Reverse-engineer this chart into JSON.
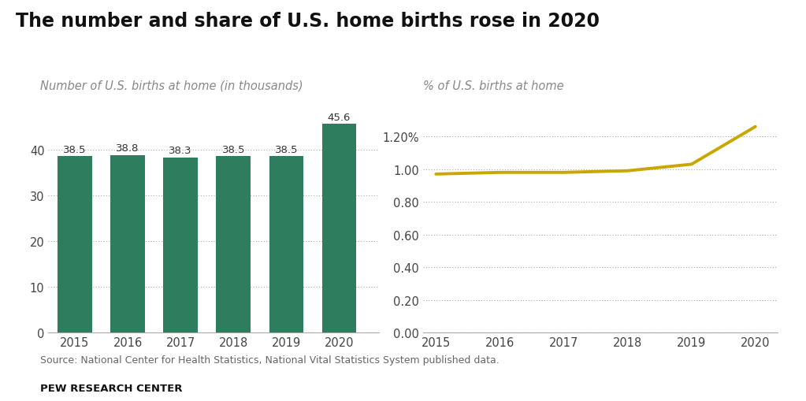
{
  "title": "The number and share of U.S. home births rose in 2020",
  "left_subtitle": "Number of U.S. births at home (in thousands)",
  "right_subtitle": "% of U.S. births at home",
  "source": "Source: National Center for Health Statistics, National Vital Statistics System published data.",
  "brand": "PEW RESEARCH CENTER",
  "bar_years": [
    2015,
    2016,
    2017,
    2018,
    2019,
    2020
  ],
  "bar_values": [
    38.5,
    38.8,
    38.3,
    38.5,
    38.5,
    45.6
  ],
  "bar_color": "#2e7d5e",
  "bar_labels": [
    "38.5",
    "38.8",
    "38.3",
    "38.5",
    "38.5",
    "45.6"
  ],
  "line_years": [
    2015,
    2016,
    2017,
    2018,
    2019,
    2020
  ],
  "line_values": [
    0.97,
    0.98,
    0.98,
    0.99,
    1.03,
    1.26
  ],
  "line_color": "#c8a800",
  "bar_ylim": [
    0,
    50
  ],
  "bar_yticks": [
    0,
    10,
    20,
    30,
    40
  ],
  "line_ylim": [
    0,
    1.4
  ],
  "line_yticks": [
    0.0,
    0.2,
    0.4,
    0.6,
    0.8,
    1.0,
    1.2
  ],
  "background_color": "#ffffff",
  "grid_color": "#aaaaaa",
  "title_fontsize": 17,
  "subtitle_fontsize": 10.5,
  "tick_fontsize": 10.5,
  "label_fontsize": 9.5,
  "source_fontsize": 9,
  "brand_fontsize": 9.5
}
